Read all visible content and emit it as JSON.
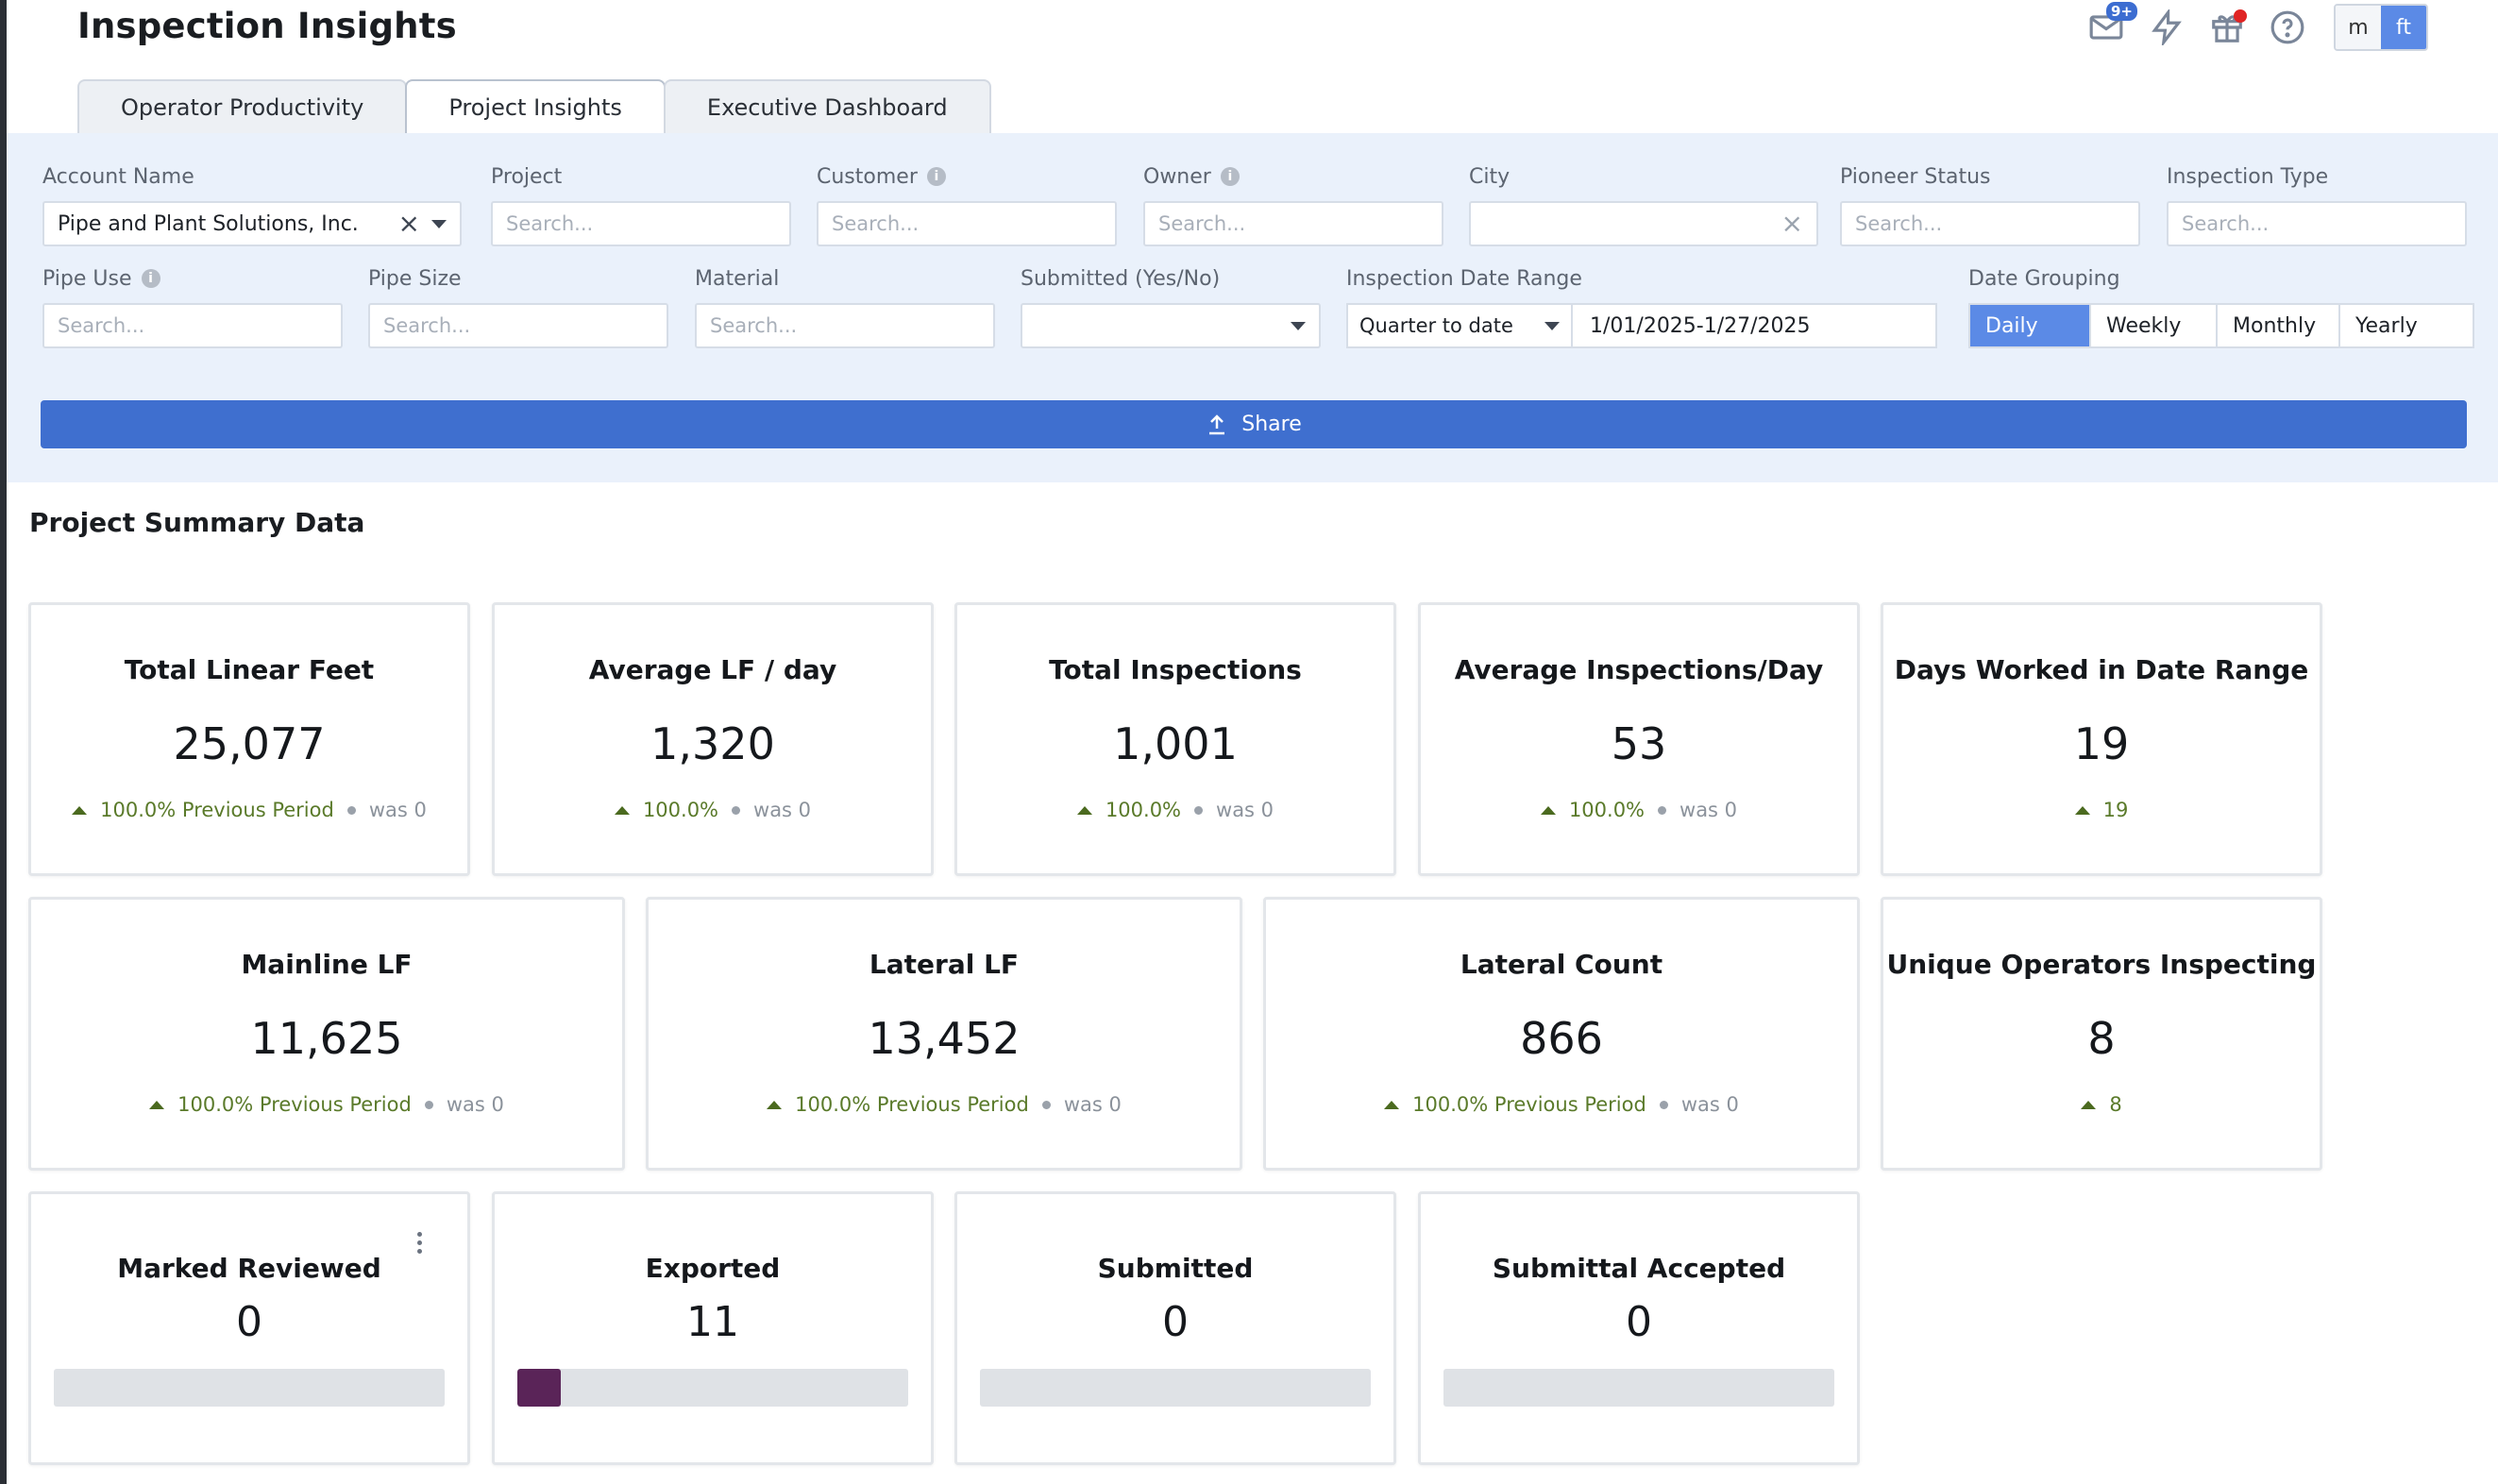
{
  "app": {
    "title": "Inspection Insights"
  },
  "header": {
    "mail_badge": "9+",
    "units": [
      "m",
      "ft"
    ],
    "active_unit": "ft"
  },
  "tabs": [
    {
      "label": "Operator Productivity",
      "active": false
    },
    {
      "label": "Project Insights",
      "active": true
    },
    {
      "label": "Executive Dashboard",
      "active": false
    }
  ],
  "filters": {
    "account_name": {
      "label": "Account Name",
      "value": "Pipe and Plant Solutions, Inc."
    },
    "project": {
      "label": "Project",
      "placeholder": "Search..."
    },
    "customer": {
      "label": "Customer",
      "placeholder": "Search..."
    },
    "owner": {
      "label": "Owner",
      "placeholder": "Search..."
    },
    "city": {
      "label": "City",
      "value": ""
    },
    "pioneer_status": {
      "label": "Pioneer Status",
      "placeholder": "Search..."
    },
    "inspection_type": {
      "label": "Inspection Type",
      "placeholder": "Search..."
    },
    "pipe_use": {
      "label": "Pipe Use",
      "placeholder": "Search..."
    },
    "pipe_size": {
      "label": "Pipe Size",
      "placeholder": "Search..."
    },
    "material": {
      "label": "Material",
      "placeholder": "Search..."
    },
    "submitted": {
      "label": "Submitted (Yes/No)",
      "value": ""
    },
    "date_range": {
      "label": "Inspection Date Range",
      "preset": "Quarter to date",
      "value": "1/01/2025-1/27/2025"
    },
    "date_grouping": {
      "label": "Date Grouping",
      "options": [
        "Daily",
        "Weekly",
        "Monthly",
        "Yearly"
      ],
      "active": "Daily"
    }
  },
  "share_label": "Share",
  "summary": {
    "title": "Project Summary Data",
    "row1": [
      {
        "title": "Total Linear Feet",
        "value": "25,077",
        "delta": "100.0% Previous Period",
        "was": "was 0"
      },
      {
        "title": "Average LF / day",
        "value": "1,320",
        "delta": "100.0%",
        "was": "was 0"
      },
      {
        "title": "Total Inspections",
        "value": "1,001",
        "delta": "100.0%",
        "was": "was 0"
      },
      {
        "title": "Average Inspections/Day",
        "value": "53",
        "delta": "100.0%",
        "was": "was 0"
      },
      {
        "title": "Days Worked in Date Range",
        "value": "19",
        "delta": "19",
        "was": ""
      }
    ],
    "row2": [
      {
        "title": "Mainline LF",
        "value": "11,625",
        "delta": "100.0% Previous Period",
        "was": "was 0"
      },
      {
        "title": "Lateral LF",
        "value": "13,452",
        "delta": "100.0% Previous Period",
        "was": "was 0"
      },
      {
        "title": "Lateral Count",
        "value": "866",
        "delta": "100.0% Previous Period",
        "was": "was 0"
      },
      {
        "title": "Unique Operators Inspecting",
        "value": "8",
        "delta": "8",
        "was": ""
      }
    ],
    "row3": [
      {
        "title": "Marked Reviewed",
        "value": "0",
        "progress": 0
      },
      {
        "title": "Exported",
        "value": "11",
        "progress": 0.11
      },
      {
        "title": "Submitted",
        "value": "0",
        "progress": 0
      },
      {
        "title": "Submittal Accepted",
        "value": "0",
        "progress": 0
      }
    ]
  },
  "colors": {
    "accent": "#3f6fcf",
    "toggle_active": "#5b8ae6",
    "positive": "#5a7a2a",
    "progress_fill": "#5a2458",
    "filter_bg": "#eaf1fb"
  }
}
